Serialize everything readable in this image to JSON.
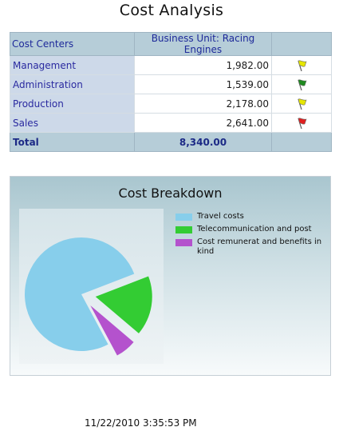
{
  "report": {
    "title": "Cost Analysis"
  },
  "table": {
    "headers": [
      "Cost Centers",
      "Business Unit: Racing Engines",
      ""
    ],
    "rows": [
      {
        "name": "Management",
        "value": "1,982.00",
        "flag": "yellow-flag-icon",
        "flag_color": "#e6e600"
      },
      {
        "name": "Administration",
        "value": "1,539.00",
        "flag": "green-flag-icon",
        "flag_color": "#1f8a1f"
      },
      {
        "name": "Production",
        "value": "2,178.00",
        "flag": "yellow-flag-icon",
        "flag_color": "#e6e600"
      },
      {
        "name": "Sales",
        "value": "2,641.00",
        "flag": "red-flag-icon",
        "flag_color": "#e02020"
      }
    ],
    "total": {
      "label": "Total",
      "value": "8,340.00"
    }
  },
  "chart_data": {
    "type": "pie",
    "title": "Cost Breakdown",
    "categories": [
      "Travel costs",
      "Telecommunication and post",
      "Cost remunerat and benefits in kind"
    ],
    "values": [
      77,
      17,
      6
    ],
    "colors": [
      "#87ceeb",
      "#33cc33",
      "#b452cd"
    ],
    "exploded": [
      false,
      true,
      true
    ],
    "legend": "right"
  },
  "footer": {
    "timestamp": "11/22/2010 3:35:53 PM"
  }
}
